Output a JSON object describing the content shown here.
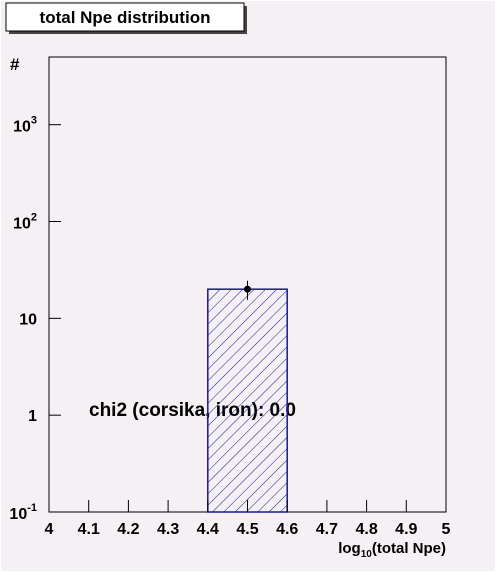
{
  "chart_data": {
    "type": "histogram",
    "title": "total Npe distribution",
    "xlabel": [
      "log",
      "10",
      "(total Npe)"
    ],
    "ylabel": "#",
    "annotation": "chi2 (corsika, iron): 0.0",
    "bins": [
      4.4,
      4.6
    ],
    "values": [
      20
    ],
    "errors": [
      4.47
    ],
    "point_x": [
      4.5
    ],
    "color": "#1a1a8c",
    "xlim": [
      4,
      5
    ],
    "xticks": [
      4,
      4.1,
      4.2,
      4.3,
      4.4,
      4.5,
      4.6,
      4.7,
      4.8,
      4.9,
      5
    ],
    "ylim": [
      0.1,
      5000
    ],
    "log_y": true,
    "yticks": [
      {
        "value": 0.1,
        "label": "10",
        "exponent": "-1"
      },
      1,
      10,
      {
        "value": 100,
        "label": "10",
        "exponent": "2"
      },
      {
        "value": 1000,
        "label": "10",
        "exponent": "3"
      }
    ]
  }
}
